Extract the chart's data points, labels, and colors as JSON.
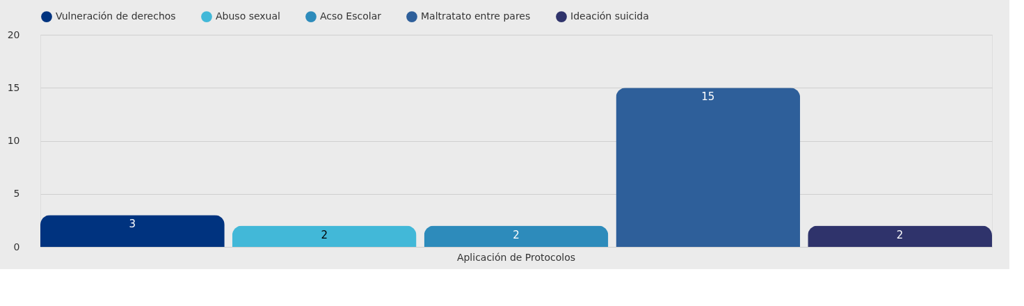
{
  "chart_data": {
    "type": "bar",
    "categories": [
      "Aplicación de Protocolos"
    ],
    "series": [
      {
        "name": "Vulneración de derechos",
        "color": "#00337f",
        "values": [
          3
        ]
      },
      {
        "name": "Abuso sexual",
        "color": "#42b8d8",
        "values": [
          2
        ]
      },
      {
        "name": "Acso Escolar",
        "color": "#2d8bbb",
        "values": [
          2
        ]
      },
      {
        "name": "Maltratato entre pares",
        "color": "#2e5f9a",
        "values": [
          15
        ]
      },
      {
        "name": "Ideación suicida",
        "color": "#2f336b",
        "values": [
          2
        ]
      }
    ],
    "ylim": [
      0,
      20
    ],
    "yticks": [
      0,
      5,
      10,
      15,
      20
    ],
    "grid": "y",
    "legend": "top",
    "data_labels": true
  }
}
